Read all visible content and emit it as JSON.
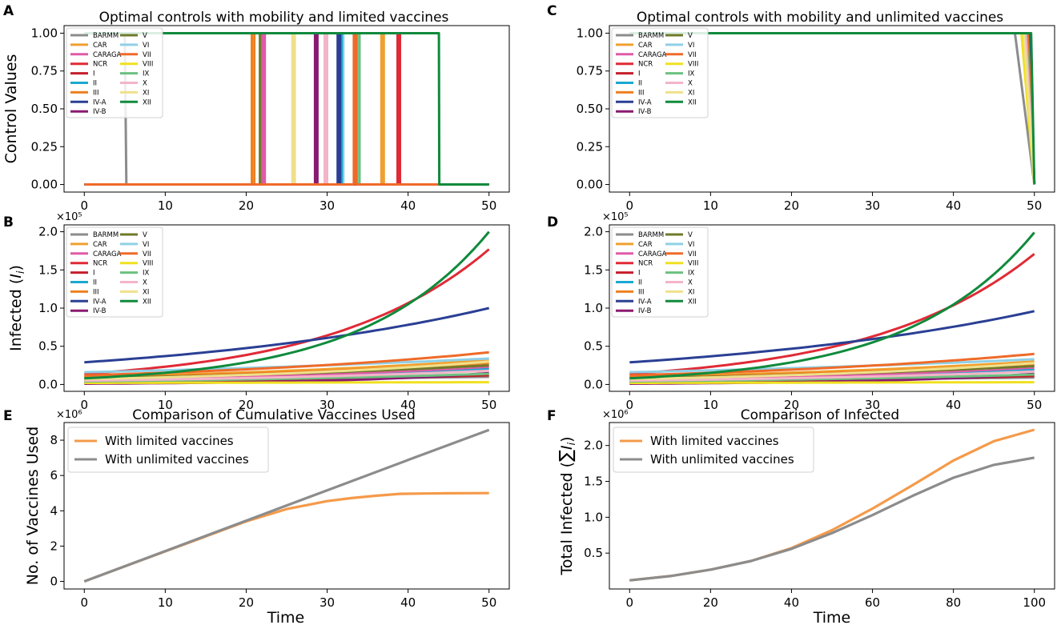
{
  "figure": {
    "regions": [
      "BARMM",
      "CAR",
      "CARAGA",
      "NCR",
      "I",
      "II",
      "III",
      "IV-A",
      "IV-B",
      "V",
      "VI",
      "VII",
      "VIII",
      "IX",
      "X",
      "XI",
      "XII"
    ],
    "region_colors": [
      "#8c8c8c",
      "#f0a030",
      "#e05aa8",
      "#e02a36",
      "#c41e2b",
      "#19a8d0",
      "#ef8020",
      "#2a3f94",
      "#8a1a70",
      "#707a2a",
      "#8fd0e6",
      "#ef6a28",
      "#f0e020",
      "#6cc080",
      "#f4b4c8",
      "#f0e08c",
      "#108a3c"
    ]
  },
  "chart_data": [
    {
      "id": "A",
      "type": "line",
      "panel_label": "A",
      "title": "Optimal controls with mobility and limited vaccines",
      "xlabel": "",
      "ylabel": "Control Values",
      "xlim": [
        -2.5,
        52.5
      ],
      "ylim": [
        -0.05,
        1.05
      ],
      "xticks": [
        0,
        10,
        20,
        30,
        40,
        50
      ],
      "yticks": [
        0.0,
        0.25,
        0.5,
        0.75,
        1.0
      ],
      "ytick_labels": [
        "0.00",
        "0.25",
        "0.50",
        "0.75",
        "1.00"
      ],
      "multiplier": "",
      "legend": "top-left",
      "series": [
        {
          "name": "BARMM",
          "switch": 5.2
        },
        {
          "name": "CAR",
          "switch": 37.0
        },
        {
          "name": "CARAGA",
          "switch": 22.3
        },
        {
          "name": "NCR",
          "switch": 39.0
        },
        {
          "name": "I",
          "switch": 22.1
        },
        {
          "name": "II",
          "switch": 31.8
        },
        {
          "name": "III",
          "switch": 21.0
        },
        {
          "name": "IV-A",
          "switch": 31.6
        },
        {
          "name": "IV-B",
          "switch": 28.8
        },
        {
          "name": "V",
          "switch": 22.0
        },
        {
          "name": "VI",
          "switch": 32.0
        },
        {
          "name": "VII",
          "switch": 33.6
        },
        {
          "name": "VIII",
          "switch": 0
        },
        {
          "name": "IX",
          "switch": 34.0
        },
        {
          "name": "X",
          "switch": 30.0
        },
        {
          "name": "XI",
          "switch": 26.0
        },
        {
          "name": "XII",
          "switch": 43.8
        }
      ]
    },
    {
      "id": "C",
      "type": "line",
      "panel_label": "C",
      "title": "Optimal controls with mobility and unlimited vaccines",
      "xlabel": "",
      "ylabel": "",
      "xlim": [
        -2.5,
        52.5
      ],
      "ylim": [
        -0.05,
        1.05
      ],
      "xticks": [
        0,
        10,
        20,
        30,
        40,
        50
      ],
      "yticks": [
        0.0,
        0.25,
        0.5,
        0.75,
        1.0
      ],
      "ytick_labels": [
        "0.00",
        "0.25",
        "0.50",
        "0.75",
        "1.00"
      ],
      "multiplier": "",
      "legend": "top-left",
      "series": [
        {
          "name": "BARMM",
          "start": 47.6
        },
        {
          "name": "CAR",
          "start": 48.6
        },
        {
          "name": "CARAGA",
          "start": 49.0
        },
        {
          "name": "NCR",
          "start": 49.3
        },
        {
          "name": "I",
          "start": 49.2
        },
        {
          "name": "II",
          "start": 49.3
        },
        {
          "name": "III",
          "start": 48.8
        },
        {
          "name": "IV-A",
          "start": 49.4
        },
        {
          "name": "IV-B",
          "start": 49.2
        },
        {
          "name": "V",
          "start": 48.6
        },
        {
          "name": "VI",
          "start": 49.0
        },
        {
          "name": "VII",
          "start": 49.2
        },
        {
          "name": "VIII",
          "start": 48.4
        },
        {
          "name": "IX",
          "start": 49.0
        },
        {
          "name": "X",
          "start": 48.9
        },
        {
          "name": "XI",
          "start": 48.7
        },
        {
          "name": "XII",
          "start": 49.6
        }
      ]
    },
    {
      "id": "B",
      "type": "line",
      "panel_label": "B",
      "title": "",
      "xlabel": "",
      "ylabel": "Infected (I_i)",
      "xlim": [
        -2.5,
        52.5
      ],
      "ylim": [
        -0.09,
        2.09
      ],
      "xticks": [
        0,
        10,
        20,
        30,
        40,
        50
      ],
      "yticks": [
        0.0,
        0.5,
        1.0,
        1.5,
        2.0
      ],
      "ytick_labels": [
        "0.0",
        "0.5",
        "1.0",
        "1.5",
        "2.0"
      ],
      "multiplier": "×10⁵",
      "legend": "top-left",
      "series": [
        {
          "name": "BARMM",
          "start": 0.05,
          "end": 0.1
        },
        {
          "name": "CAR",
          "start": 0.1,
          "end": 0.32
        },
        {
          "name": "CARAGA",
          "start": 0.06,
          "end": 0.22
        },
        {
          "name": "NCR",
          "start": 0.14,
          "end": 1.77
        },
        {
          "name": "I",
          "start": 0.03,
          "end": 0.12
        },
        {
          "name": "II",
          "start": 0.04,
          "end": 0.2
        },
        {
          "name": "III",
          "start": 0.09,
          "end": 0.28
        },
        {
          "name": "IV-A",
          "start": 0.29,
          "end": 1.0
        },
        {
          "name": "IV-B",
          "start": 0.01,
          "end": 0.15
        },
        {
          "name": "V",
          "start": 0.08,
          "end": 0.25
        },
        {
          "name": "VI",
          "start": 0.16,
          "end": 0.34
        },
        {
          "name": "VII",
          "start": 0.12,
          "end": 0.42
        },
        {
          "name": "VIII",
          "start": 0.02,
          "end": 0.03
        },
        {
          "name": "IX",
          "start": 0.04,
          "end": 0.14
        },
        {
          "name": "X",
          "start": 0.05,
          "end": 0.18
        },
        {
          "name": "XI",
          "start": 0.07,
          "end": 0.3
        },
        {
          "name": "XII",
          "start": 0.08,
          "end": 2.0
        }
      ]
    },
    {
      "id": "D",
      "type": "line",
      "panel_label": "D",
      "title": "",
      "xlabel": "",
      "ylabel": "",
      "xlim": [
        -2.5,
        52.5
      ],
      "ylim": [
        -0.09,
        2.09
      ],
      "xticks": [
        0,
        10,
        20,
        30,
        40,
        50
      ],
      "yticks": [
        0.0,
        0.5,
        1.0,
        1.5,
        2.0
      ],
      "ytick_labels": [
        "0.0",
        "0.5",
        "1.0",
        "1.5",
        "2.0"
      ],
      "multiplier": "×10⁵",
      "legend": "top-left",
      "series": [
        {
          "name": "BARMM",
          "start": 0.05,
          "end": 0.09
        },
        {
          "name": "CAR",
          "start": 0.1,
          "end": 0.3
        },
        {
          "name": "CARAGA",
          "start": 0.06,
          "end": 0.21
        },
        {
          "name": "NCR",
          "start": 0.14,
          "end": 1.71
        },
        {
          "name": "I",
          "start": 0.03,
          "end": 0.11
        },
        {
          "name": "II",
          "start": 0.04,
          "end": 0.19
        },
        {
          "name": "III",
          "start": 0.09,
          "end": 0.26
        },
        {
          "name": "IV-A",
          "start": 0.29,
          "end": 0.96
        },
        {
          "name": "IV-B",
          "start": 0.01,
          "end": 0.14
        },
        {
          "name": "V",
          "start": 0.08,
          "end": 0.24
        },
        {
          "name": "VI",
          "start": 0.16,
          "end": 0.33
        },
        {
          "name": "VII",
          "start": 0.12,
          "end": 0.4
        },
        {
          "name": "VIII",
          "start": 0.02,
          "end": 0.03
        },
        {
          "name": "IX",
          "start": 0.04,
          "end": 0.13
        },
        {
          "name": "X",
          "start": 0.05,
          "end": 0.17
        },
        {
          "name": "XI",
          "start": 0.07,
          "end": 0.28
        },
        {
          "name": "XII",
          "start": 0.08,
          "end": 1.99
        }
      ]
    },
    {
      "id": "E",
      "type": "line",
      "panel_label": "E",
      "title": "Comparison of Cumulative Vaccines Used",
      "xlabel": "Time",
      "ylabel": "No. of Vaccines Used",
      "xlim": [
        -2.5,
        52.5
      ],
      "ylim": [
        -0.43,
        9.0
      ],
      "xticks": [
        0,
        10,
        20,
        30,
        40,
        50
      ],
      "yticks": [
        0,
        2,
        4,
        6,
        8
      ],
      "ytick_labels": [
        "0",
        "2",
        "4",
        "6",
        "8"
      ],
      "multiplier": "×10⁶",
      "legend": "top-left",
      "series": [
        {
          "name": "With limited vaccines",
          "color": "#f59a4a",
          "x": [
            0,
            5,
            10,
            15,
            20,
            25,
            30,
            33,
            36,
            39,
            42,
            45,
            50
          ],
          "y": [
            0,
            0.85,
            1.7,
            2.55,
            3.4,
            4.1,
            4.55,
            4.72,
            4.85,
            4.96,
            4.98,
            4.99,
            5.0
          ]
        },
        {
          "name": "With unlimited vaccines",
          "color": "#8c8c8c",
          "x": [
            0,
            10,
            20,
            30,
            40,
            50
          ],
          "y": [
            0,
            1.72,
            3.44,
            5.16,
            6.88,
            8.58
          ]
        }
      ]
    },
    {
      "id": "F",
      "type": "line",
      "panel_label": "F",
      "title": "Comparison of Infected",
      "xlabel": "Time",
      "ylabel": "Total Infected (∑ I_i)",
      "xlim": [
        -5,
        105
      ],
      "ylim": [
        0.0,
        2.32
      ],
      "xticks": [
        0,
        20,
        40,
        60,
        80,
        100
      ],
      "yticks": [
        0.5,
        1.0,
        1.5,
        2.0
      ],
      "ytick_labels": [
        "0.5",
        "1.0",
        "1.5",
        "2.0"
      ],
      "multiplier": "×10⁶",
      "legend": "top-left",
      "series": [
        {
          "name": "With limited vaccines",
          "color": "#f59a4a",
          "x": [
            0,
            10,
            20,
            30,
            40,
            50,
            60,
            70,
            80,
            90,
            100
          ],
          "y": [
            0.12,
            0.18,
            0.27,
            0.39,
            0.57,
            0.82,
            1.12,
            1.45,
            1.79,
            2.06,
            2.22
          ]
        },
        {
          "name": "With unlimited vaccines",
          "color": "#8c8c8c",
          "x": [
            0,
            10,
            20,
            30,
            40,
            50,
            60,
            70,
            80,
            90,
            100
          ],
          "y": [
            0.12,
            0.18,
            0.27,
            0.39,
            0.56,
            0.78,
            1.03,
            1.3,
            1.55,
            1.73,
            1.83
          ]
        }
      ]
    }
  ]
}
